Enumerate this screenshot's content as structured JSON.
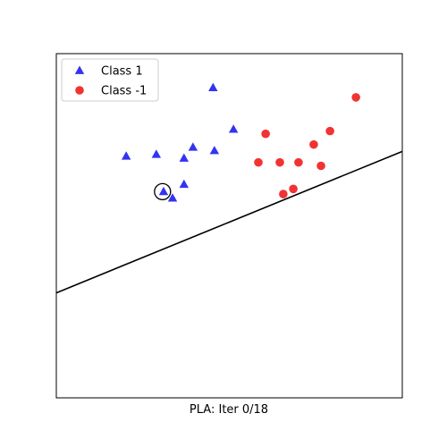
{
  "chart_data": {
    "type": "scatter",
    "xlabel": "PLA: Iter 0/18",
    "xlim": [
      0,
      1
    ],
    "ylim": [
      0,
      1
    ],
    "grid": false,
    "ticks_visible": false,
    "legend": {
      "placement": "top-left",
      "entries": [
        {
          "label": "Class 1",
          "marker": "triangle",
          "color": "#0000ee"
        },
        {
          "label": "Class -1",
          "marker": "circle",
          "color": "#ee0000"
        }
      ]
    },
    "series": [
      {
        "name": "Class 1",
        "marker": "triangle",
        "color": "#0000ee",
        "points": [
          {
            "x": 0.453,
            "y": 0.901
          },
          {
            "x": 0.512,
            "y": 0.78
          },
          {
            "x": 0.202,
            "y": 0.702
          },
          {
            "x": 0.289,
            "y": 0.707
          },
          {
            "x": 0.369,
            "y": 0.696
          },
          {
            "x": 0.395,
            "y": 0.728
          },
          {
            "x": 0.457,
            "y": 0.718
          },
          {
            "x": 0.369,
            "y": 0.62
          },
          {
            "x": 0.31,
            "y": 0.599
          },
          {
            "x": 0.336,
            "y": 0.58
          }
        ]
      },
      {
        "name": "Class -1",
        "marker": "circle",
        "color": "#ee0000",
        "points": [
          {
            "x": 0.866,
            "y": 0.873
          },
          {
            "x": 0.791,
            "y": 0.775
          },
          {
            "x": 0.605,
            "y": 0.767
          },
          {
            "x": 0.744,
            "y": 0.736
          },
          {
            "x": 0.584,
            "y": 0.684
          },
          {
            "x": 0.646,
            "y": 0.684
          },
          {
            "x": 0.7,
            "y": 0.684
          },
          {
            "x": 0.765,
            "y": 0.674
          },
          {
            "x": 0.685,
            "y": 0.607
          },
          {
            "x": 0.656,
            "y": 0.592
          }
        ]
      }
    ],
    "highlight": {
      "x": 0.307,
      "y": 0.599,
      "marker": "open-circle",
      "color": "#000000"
    },
    "decision_line": {
      "points": [
        {
          "x": 0,
          "y": 0.305
        },
        {
          "x": 1,
          "y": 0.716
        }
      ],
      "color": "#000000"
    }
  }
}
